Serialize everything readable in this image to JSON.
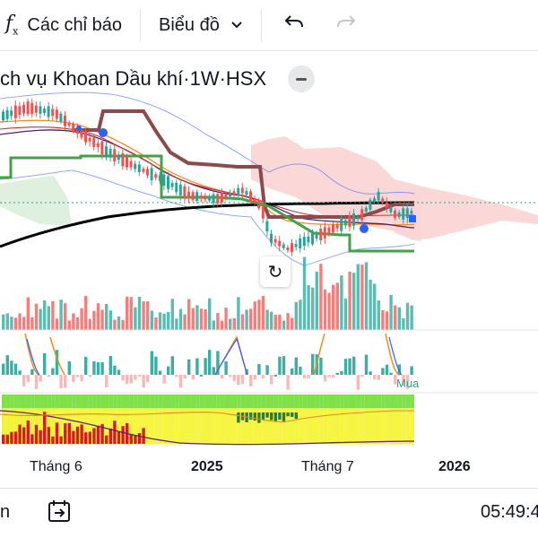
{
  "toolbar": {
    "indicators_label": "Các chỉ báo",
    "chart_type_label": "Biểu đồ"
  },
  "legend": {
    "symbol_title": "ch vụ Khoan Dầu khí",
    "interval": "1W",
    "exchange": "HSX",
    "separator": " · "
  },
  "colors": {
    "up": "#26a69a",
    "down": "#ef5350",
    "ma_long": "#000000",
    "cloud_bearish": "#fbd4d4",
    "cloud_bullish": "#d7ecd7",
    "bollinger": "#2962ff",
    "kijun": "#8d4a4a",
    "green_line": "#43a047"
  },
  "time_axis": {
    "labels": [
      "Tháng 6",
      "2025",
      "Tháng 7",
      "2026"
    ]
  },
  "indicator_label": "Mua",
  "bottom_bar": {
    "range_label": "n",
    "clock": "05:49:4"
  },
  "icons": {
    "indicators": "fx-icon",
    "chart_type": "chevron-down-icon",
    "undo": "undo-icon",
    "redo": "redo-icon",
    "collapse": "minus-icon",
    "reset": "reset-chart-icon",
    "goto": "go-to-date-icon"
  }
}
